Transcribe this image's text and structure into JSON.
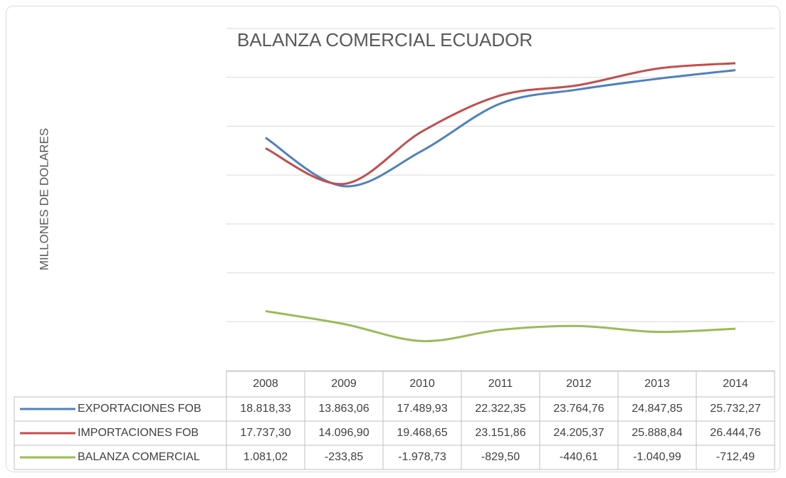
{
  "chart_data": {
    "type": "line",
    "title": "BALANZA COMERCIAL ECUADOR",
    "y_label": "MILLONES DE DOLARES",
    "categories": [
      "2008",
      "2009",
      "2010",
      "2011",
      "2012",
      "2013",
      "2014"
    ],
    "ylim": [
      -5000,
      30000
    ],
    "yticks": [
      -5000,
      0,
      5000,
      10000,
      15000,
      20000,
      25000,
      30000
    ],
    "grid": true,
    "series": [
      {
        "name": "EXPORTACIONES FOB",
        "color": "#4f81bd",
        "values": [
          18818.33,
          13863.06,
          17489.93,
          22322.35,
          23764.76,
          24847.85,
          25732.27
        ],
        "value_labels": [
          "18.818,33",
          "13.863,06",
          "17.489,93",
          "22.322,35",
          "23.764,76",
          "24.847,85",
          "25.732,27"
        ]
      },
      {
        "name": "IMPORTACIONES FOB",
        "color": "#c0504d",
        "values": [
          17737.3,
          14096.9,
          19468.65,
          23151.86,
          24205.37,
          25888.84,
          26444.76
        ],
        "value_labels": [
          "17.737,30",
          "14.096,90",
          "19.468,65",
          "23.151,86",
          "24.205,37",
          "25.888,84",
          "26.444,76"
        ]
      },
      {
        "name": "BALANZA COMERCIAL",
        "color": "#9bbb59",
        "values": [
          1081.02,
          -233.85,
          -1978.73,
          -829.5,
          -440.61,
          -1040.99,
          -712.49
        ],
        "value_labels": [
          "1.081,02",
          "-233,85",
          "-1.978,73",
          "-829,50",
          "-440,61",
          "-1.040,99",
          "-712,49"
        ]
      }
    ]
  }
}
